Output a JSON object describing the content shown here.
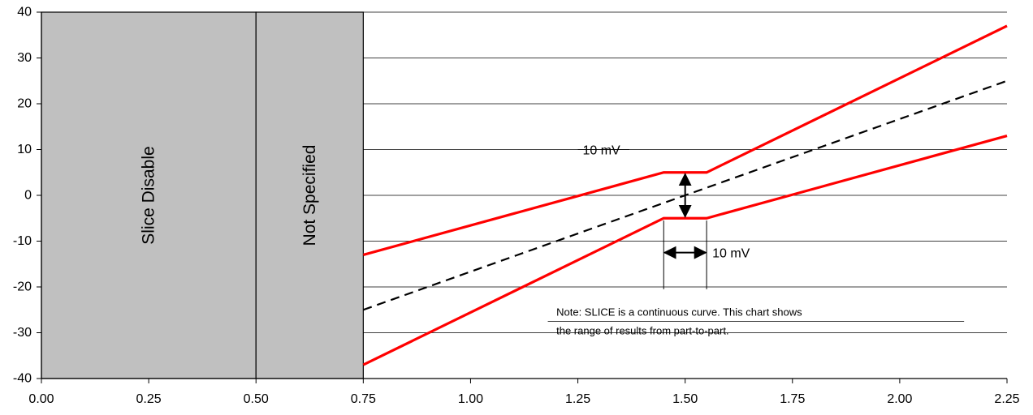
{
  "chart_data": {
    "type": "line",
    "title": "",
    "xlabel": "",
    "ylabel": "",
    "xlim": [
      0,
      2.25
    ],
    "ylim": [
      -40,
      40
    ],
    "x_ticks": [
      "0.00",
      "0.25",
      "0.50",
      "0.75",
      "1.00",
      "1.25",
      "1.50",
      "1.75",
      "2.00",
      "2.25"
    ],
    "y_ticks": [
      "40",
      "30",
      "20",
      "10",
      "0",
      "-10",
      "-20",
      "-30",
      "-40"
    ],
    "grid": "horizontal",
    "regions": [
      {
        "label": "Slice Disable",
        "x_range": [
          0,
          0.5
        ],
        "color": "#c0c0c0"
      },
      {
        "label": "Not Specified",
        "x_range": [
          0.5,
          0.75
        ],
        "color": "#c0c0c0"
      }
    ],
    "series": [
      {
        "style": "solid",
        "color": "#ff0000",
        "points": [
          [
            0.75,
            -13
          ],
          [
            1.45,
            5
          ],
          [
            1.55,
            5
          ],
          [
            2.25,
            37
          ]
        ]
      },
      {
        "style": "dashed",
        "color": "#000000",
        "points": [
          [
            0.75,
            -25
          ],
          [
            2.25,
            25
          ]
        ]
      },
      {
        "style": "solid",
        "color": "#ff0000",
        "points": [
          [
            0.75,
            -37
          ],
          [
            1.45,
            -5
          ],
          [
            1.55,
            -5
          ],
          [
            2.25,
            13
          ]
        ]
      }
    ],
    "annotations": {
      "vertical_arrow": {
        "label": "10 mV",
        "x": 1.5,
        "y_range": [
          -5,
          5
        ]
      },
      "horizontal_arrow": {
        "label": "10 mV",
        "x_range": [
          1.45,
          1.55
        ],
        "y": -12.5
      },
      "note_line1": "Note: SLICE is a continuous curve. This chart shows",
      "note_line2": "the range of results from part-to-part."
    }
  }
}
